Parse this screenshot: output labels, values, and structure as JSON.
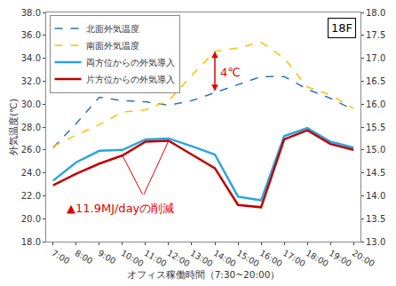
{
  "chart_data": {
    "type": "line",
    "x_label": "オフィス稼働時間（7:30~20:00）",
    "y_label": "外気温度(℃)",
    "categories": [
      "7:00",
      "8:00",
      "9:00",
      "10:00",
      "11:00",
      "12:00",
      "13:00",
      "14:00",
      "15:00",
      "16:00",
      "17:00",
      "18:00",
      "19:00",
      "20:00"
    ],
    "series": [
      {
        "name": "北面外気温度",
        "color": "#2E75B6",
        "line_style": "dashed",
        "values": [
          26.2,
          28.3,
          30.6,
          30.3,
          30.2,
          29.9,
          30.3,
          31.0,
          31.7,
          32.4,
          32.4,
          31.3,
          30.5,
          29.5
        ]
      },
      {
        "name": "南面外気温度",
        "color": "#FFC000",
        "line_style": "dashed",
        "values": [
          26.3,
          27.3,
          28.2,
          29.3,
          29.5,
          30.3,
          32.5,
          34.6,
          34.9,
          35.4,
          34.0,
          31.5,
          30.8,
          29.6
        ]
      },
      {
        "name": "両方位からの外気導入",
        "color": "#2BA5DE",
        "line_style": "solid",
        "axis": "y2",
        "values": [
          14.33,
          14.73,
          14.98,
          15.0,
          15.23,
          15.25,
          15.08,
          14.9,
          13.98,
          13.9,
          15.3,
          15.48,
          15.18,
          15.05
        ]
      },
      {
        "name": "片方位からの外気導入",
        "color": "#C00000",
        "line_style": "solid",
        "axis": "y2",
        "values": [
          14.23,
          14.48,
          14.7,
          14.88,
          15.18,
          15.2,
          14.9,
          14.6,
          13.8,
          13.75,
          15.23,
          15.43,
          15.13,
          15.0
        ]
      }
    ],
    "ylim": [
      18,
      38
    ],
    "yticks": [
      {
        "value": 18,
        "label": "18.0"
      },
      {
        "value": 20,
        "label": "20.0"
      },
      {
        "value": 22,
        "label": "22.0"
      },
      {
        "value": 24,
        "label": "24.0"
      },
      {
        "value": 26,
        "label": "26.0"
      },
      {
        "value": 28,
        "label": "28.0"
      },
      {
        "value": 30,
        "label": "30.0"
      },
      {
        "value": 32,
        "label": "32.0"
      },
      {
        "value": 34,
        "label": "34.0"
      },
      {
        "value": 36,
        "label": "36.0"
      },
      {
        "value": 38,
        "label": "38.0"
      }
    ],
    "y2lim": [
      13,
      18
    ],
    "y2ticks": [
      {
        "value": 13,
        "label": "13.0"
      },
      {
        "value": 13.5,
        "label": "13.5"
      },
      {
        "value": 14,
        "label": "14.0"
      },
      {
        "value": 14.5,
        "label": "14.5"
      },
      {
        "value": 15,
        "label": "15.0"
      },
      {
        "value": 15.5,
        "label": "15.5"
      },
      {
        "value": 16,
        "label": "16.0"
      },
      {
        "value": 16.5,
        "label": "16.5"
      },
      {
        "value": 17,
        "label": "17.0"
      },
      {
        "value": 17.5,
        "label": "17.5"
      },
      {
        "value": 18,
        "label": "18.0"
      }
    ],
    "grid": false,
    "legend": "top-left",
    "annotations": [
      {
        "text": "18F"
      },
      {
        "text": "4℃",
        "x": "14:00",
        "between": [
          "北面外気温度",
          "南面外気温度"
        ]
      },
      {
        "text": "▲11.9MJ/dayの削減",
        "points": [
          "10:00",
          "12:00"
        ],
        "series": "片方位からの外気導入"
      }
    ]
  }
}
